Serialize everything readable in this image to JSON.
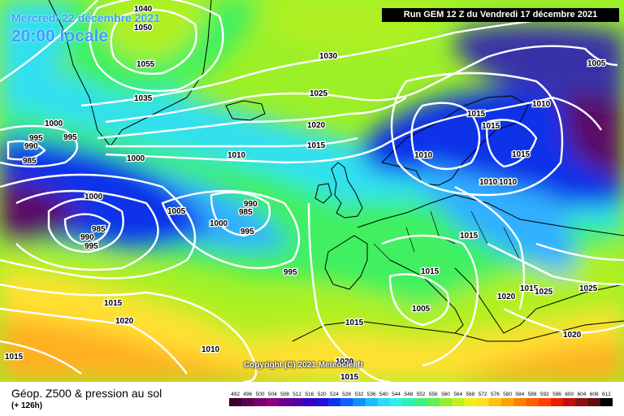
{
  "header": {
    "date": "Mercredi 22 décembre 2021",
    "time": "20:00 locale",
    "run": "Run GEM 12 Z du Vendredi 17 décembre 2021"
  },
  "copyright": "Copyright (C) 2021 Meteociel.fr",
  "footer": {
    "title": "Géop. Z500 & pression au sol",
    "subtitle": "(+ 126h)"
  },
  "scale": {
    "labels": [
      "492",
      "496",
      "500",
      "504",
      "508",
      "512",
      "516",
      "520",
      "524",
      "528",
      "532",
      "536",
      "540",
      "544",
      "548",
      "552",
      "556",
      "560",
      "564",
      "568",
      "572",
      "576",
      "580",
      "584",
      "588",
      "592",
      "596",
      "600",
      "604",
      "608",
      "612"
    ],
    "colors": [
      "#3a0030",
      "#5a0050",
      "#7a006a",
      "#900080",
      "#6a0090",
      "#5000a8",
      "#3800c0",
      "#2010d8",
      "#1030f0",
      "#1060ff",
      "#1090ff",
      "#20b8ff",
      "#30d8ff",
      "#30f0e8",
      "#30f0b0",
      "#40f080",
      "#60f050",
      "#90f030",
      "#c0f020",
      "#e8f020",
      "#ffe020",
      "#ffc010",
      "#ffa000",
      "#ff8000",
      "#ff6000",
      "#ff4000",
      "#e82000",
      "#c01010",
      "#901010",
      "#601010",
      "#000000"
    ]
  },
  "isobar_labels": [
    "1040",
    "1050",
    "1055",
    "1035",
    "1030",
    "1025",
    "1020",
    "1015",
    "1010",
    "1005",
    "1000",
    "995",
    "990",
    "985"
  ],
  "map_colors": {
    "deep_purple": "#5a0c68",
    "blue": "#1030e8",
    "light_blue": "#30b0ff",
    "cyan": "#30e0f0",
    "green": "#40f060",
    "yellow_green": "#b0f020",
    "yellow": "#ffe030",
    "orange": "#ffb020",
    "isobar": "#ffffff",
    "coastline": "#000000"
  }
}
